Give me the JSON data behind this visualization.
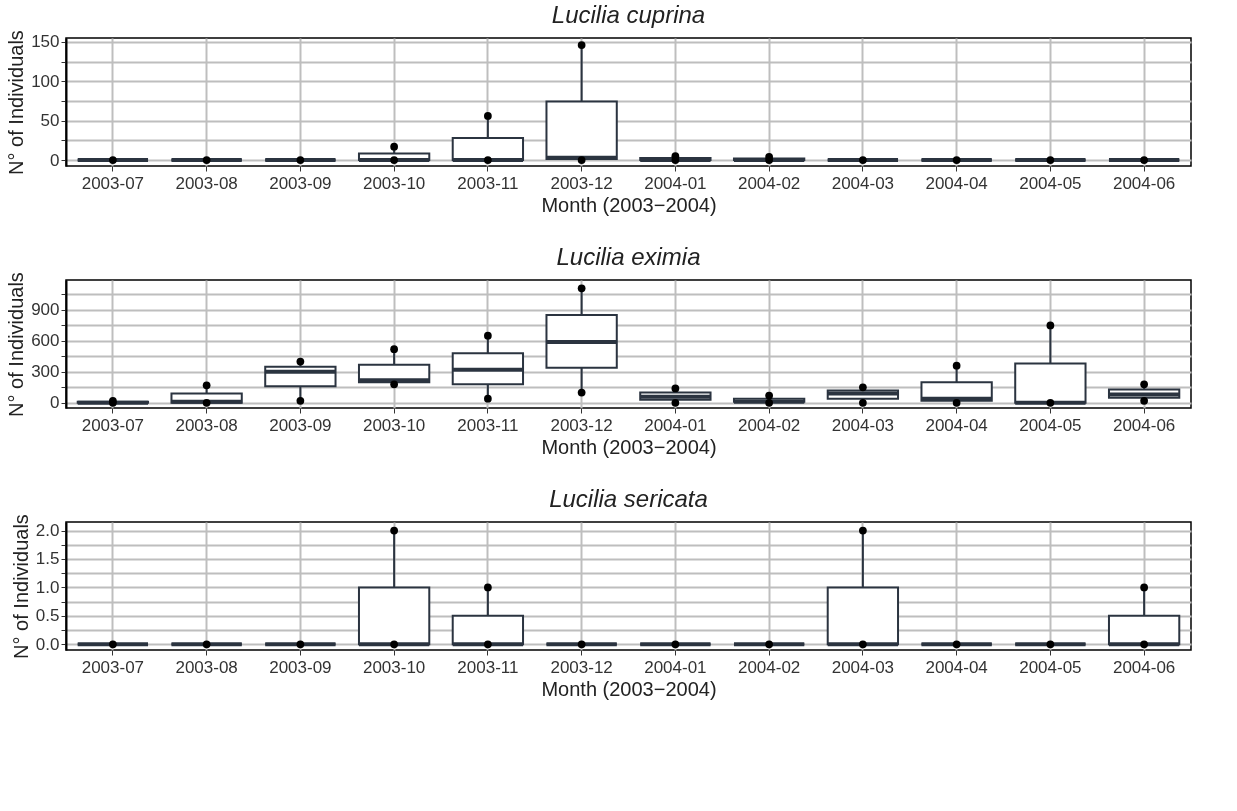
{
  "chart_data": [
    {
      "type": "box",
      "title": "Lucilia cuprina",
      "xlabel": "Month (2003−2004)",
      "ylabel": "N° of Individuals",
      "grid": true,
      "categories": [
        "2003-07",
        "2003-08",
        "2003-09",
        "2003-10",
        "2003-11",
        "2003-12",
        "2004-01",
        "2004-02",
        "2004-03",
        "2004-04",
        "2004-05",
        "2004-06"
      ],
      "ylim": [
        -7.5,
        155
      ],
      "yticks": [
        0,
        {
          "value": 25,
          "label": null
        },
        50,
        {
          "value": 75,
          "label": null
        },
        100,
        {
          "value": 125,
          "label": null
        },
        150
      ],
      "color": "#2b3440",
      "boxes": [
        {
          "low": 0,
          "q1": 0,
          "median": 0,
          "q3": 0,
          "high": 0
        },
        {
          "low": 0,
          "q1": 0,
          "median": 0,
          "q3": 0,
          "high": 0
        },
        {
          "low": 0,
          "q1": 0,
          "median": 0,
          "q3": 0,
          "high": 0
        },
        {
          "low": 0,
          "q1": 0,
          "median": 0,
          "q3": 8.5,
          "high": 17
        },
        {
          "low": 0,
          "q1": 0,
          "median": 0,
          "q3": 28,
          "high": 56
        },
        {
          "low": 0,
          "q1": 1.5,
          "median": 3,
          "q3": 74.5,
          "high": 146
        },
        {
          "low": 0,
          "q1": 0,
          "median": 0,
          "q3": 2.5,
          "high": 5
        },
        {
          "low": 0,
          "q1": 0,
          "median": 0,
          "q3": 2,
          "high": 4
        },
        {
          "low": 0,
          "q1": 0,
          "median": 0,
          "q3": 0,
          "high": 0
        },
        {
          "low": 0,
          "q1": 0,
          "median": 0,
          "q3": 0,
          "high": 0
        },
        {
          "low": 0,
          "q1": 0,
          "median": 0,
          "q3": 0,
          "high": 0
        },
        {
          "low": 0,
          "q1": 0,
          "median": 0,
          "q3": 0,
          "high": 0
        }
      ],
      "series": [
        {
          "type": "scatter",
          "color": "#000000",
          "values": [
            0,
            0,
            0,
            0,
            0,
            0,
            0,
            0,
            0,
            0,
            0,
            0
          ]
        },
        {
          "type": "scatter",
          "color": "#000000",
          "values": [
            null,
            null,
            null,
            17,
            56,
            146,
            5,
            4,
            null,
            null,
            null,
            null
          ]
        }
      ]
    },
    {
      "type": "box",
      "title": "Lucilia eximia",
      "xlabel": "Month (2003−2004)",
      "ylabel": "N° of Individuals",
      "grid": true,
      "categories": [
        "2003-07",
        "2003-08",
        "2003-09",
        "2003-10",
        "2003-11",
        "2003-12",
        "2004-01",
        "2004-02",
        "2004-03",
        "2004-04",
        "2004-05",
        "2004-06"
      ],
      "ylim": [
        -50,
        1190
      ],
      "yticks": [
        0,
        {
          "value": 150,
          "label": null
        },
        300,
        {
          "value": 450,
          "label": null
        },
        600,
        {
          "value": 750,
          "label": null
        },
        900,
        {
          "value": 1050,
          "label": null
        }
      ],
      "color": "#2b3440",
      "boxes": [
        {
          "low": 0,
          "q1": 0,
          "median": 0,
          "q3": 10,
          "high": 20
        },
        {
          "low": 0,
          "q1": 0,
          "median": 10,
          "q3": 90,
          "high": 170
        },
        {
          "low": 20,
          "q1": 160,
          "median": 300,
          "q3": 350,
          "high": 400
        },
        {
          "low": 180,
          "q1": 200,
          "median": 220,
          "q3": 370,
          "high": 520
        },
        {
          "low": 40,
          "q1": 180,
          "median": 320,
          "q3": 480,
          "high": 650
        },
        {
          "low": 100,
          "q1": 340,
          "median": 590,
          "q3": 850,
          "high": 1110
        },
        {
          "low": 0,
          "q1": 30,
          "median": 60,
          "q3": 100,
          "high": 140
        },
        {
          "low": 0,
          "q1": 10,
          "median": 10,
          "q3": 40,
          "high": 70
        },
        {
          "low": 0,
          "q1": 40,
          "median": 90,
          "q3": 120,
          "high": 150
        },
        {
          "low": 0,
          "q1": 20,
          "median": 40,
          "q3": 200,
          "high": 360
        },
        {
          "low": 0,
          "q1": 0,
          "median": 0,
          "q3": 380,
          "high": 750
        },
        {
          "low": 20,
          "q1": 50,
          "median": 80,
          "q3": 130,
          "high": 180
        }
      ],
      "series": [
        {
          "type": "scatter",
          "color": "#000000",
          "values": [
            0,
            0,
            20,
            180,
            40,
            100,
            0,
            0,
            0,
            0,
            0,
            20
          ]
        },
        {
          "type": "scatter",
          "color": "#000000",
          "values": [
            20,
            170,
            400,
            520,
            650,
            1110,
            140,
            70,
            150,
            360,
            750,
            180
          ]
        }
      ]
    },
    {
      "type": "box",
      "title": "Lucilia sericata",
      "xlabel": "Month (2003−2004)",
      "ylabel": "N° of Individuals",
      "grid": true,
      "categories": [
        "2003-07",
        "2003-08",
        "2003-09",
        "2003-10",
        "2003-11",
        "2003-12",
        "2004-01",
        "2004-02",
        "2004-03",
        "2004-04",
        "2004-05",
        "2004-06"
      ],
      "ylim": [
        -0.1,
        2.15
      ],
      "yticks": [
        {
          "value": 0,
          "label": "0.0"
        },
        {
          "value": 0.25,
          "label": null
        },
        {
          "value": 0.5,
          "label": "0.5"
        },
        {
          "value": 0.75,
          "label": null
        },
        {
          "value": 1,
          "label": "1.0"
        },
        {
          "value": 1.25,
          "label": null
        },
        {
          "value": 1.5,
          "label": "1.5"
        },
        {
          "value": 1.75,
          "label": null
        },
        {
          "value": 2,
          "label": "2.0"
        }
      ],
      "color": "#2b3440",
      "boxes": [
        {
          "low": 0,
          "q1": 0,
          "median": 0,
          "q3": 0,
          "high": 0
        },
        {
          "low": 0,
          "q1": 0,
          "median": 0,
          "q3": 0,
          "high": 0
        },
        {
          "low": 0,
          "q1": 0,
          "median": 0,
          "q3": 0,
          "high": 0
        },
        {
          "low": 0,
          "q1": 0,
          "median": 0,
          "q3": 1,
          "high": 2
        },
        {
          "low": 0,
          "q1": 0,
          "median": 0,
          "q3": 0.5,
          "high": 1
        },
        {
          "low": 0,
          "q1": 0,
          "median": 0,
          "q3": 0,
          "high": 0
        },
        {
          "low": 0,
          "q1": 0,
          "median": 0,
          "q3": 0,
          "high": 0
        },
        {
          "low": 0,
          "q1": 0,
          "median": 0,
          "q3": 0,
          "high": 0
        },
        {
          "low": 0,
          "q1": 0,
          "median": 0,
          "q3": 1,
          "high": 2
        },
        {
          "low": 0,
          "q1": 0,
          "median": 0,
          "q3": 0,
          "high": 0
        },
        {
          "low": 0,
          "q1": 0,
          "median": 0,
          "q3": 0,
          "high": 0
        },
        {
          "low": 0,
          "q1": 0,
          "median": 0,
          "q3": 0.5,
          "high": 1
        }
      ],
      "series": [
        {
          "type": "scatter",
          "color": "#000000",
          "values": [
            0,
            0,
            0,
            0,
            0,
            0,
            0,
            0,
            0,
            0,
            0,
            0
          ]
        },
        {
          "type": "scatter",
          "color": "#000000",
          "values": [
            null,
            null,
            null,
            2,
            1,
            null,
            null,
            null,
            2,
            null,
            null,
            1
          ]
        }
      ]
    }
  ]
}
